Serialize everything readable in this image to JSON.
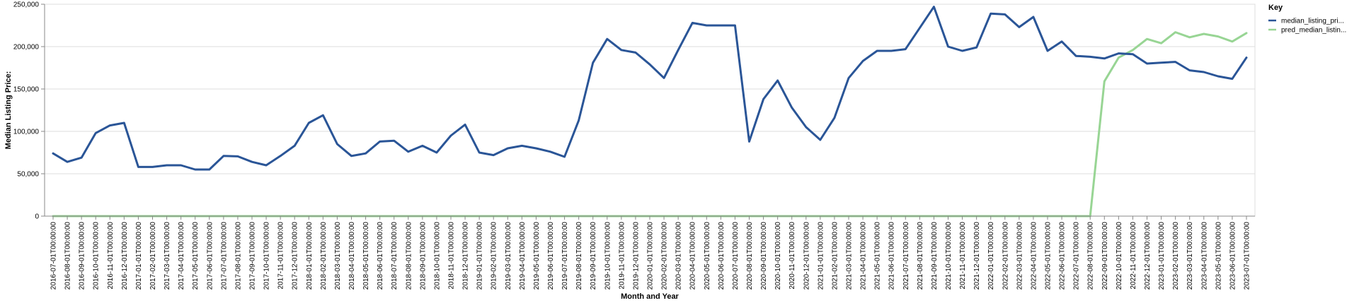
{
  "chart_data": {
    "type": "line",
    "xlabel": "Month and Year",
    "ylabel": "Median Listing Price:",
    "ylim": [
      0,
      250000
    ],
    "yticks": [
      "0",
      "50,000",
      "100,000",
      "150,000",
      "200,000",
      "250,000"
    ],
    "ytick_values": [
      0,
      50000,
      100000,
      150000,
      200000,
      250000
    ],
    "grid": "horizontal",
    "legend": {
      "title": "Key",
      "placement": "top-right"
    },
    "x": [
      "2016-07-01T00:00:00",
      "2016-08-01T00:00:00",
      "2016-09-01T00:00:00",
      "2016-10-01T00:00:00",
      "2016-11-01T00:00:00",
      "2016-12-01T00:00:00",
      "2017-01-01T00:00:00",
      "2017-02-01T00:00:00",
      "2017-03-01T00:00:00",
      "2017-04-01T00:00:00",
      "2017-05-01T00:00:00",
      "2017-06-01T00:00:00",
      "2017-07-01T00:00:00",
      "2017-08-01T00:00:00",
      "2017-09-01T00:00:00",
      "2017-10-01T00:00:00",
      "2017-11-01T00:00:00",
      "2017-12-01T00:00:00",
      "2018-01-01T00:00:00",
      "2018-02-01T00:00:00",
      "2018-03-01T00:00:00",
      "2018-04-01T00:00:00",
      "2018-05-01T00:00:00",
      "2018-06-01T00:00:00",
      "2018-07-01T00:00:00",
      "2018-08-01T00:00:00",
      "2018-09-01T00:00:00",
      "2018-10-01T00:00:00",
      "2018-11-01T00:00:00",
      "2018-12-01T00:00:00",
      "2019-01-01T00:00:00",
      "2019-02-01T00:00:00",
      "2019-03-01T00:00:00",
      "2019-04-01T00:00:00",
      "2019-05-01T00:00:00",
      "2019-06-01T00:00:00",
      "2019-07-01T00:00:00",
      "2019-08-01T00:00:00",
      "2019-09-01T00:00:00",
      "2019-10-01T00:00:00",
      "2019-11-01T00:00:00",
      "2019-12-01T00:00:00",
      "2020-01-01T00:00:00",
      "2020-02-01T00:00:00",
      "2020-03-01T00:00:00",
      "2020-04-01T00:00:00",
      "2020-05-01T00:00:00",
      "2020-06-01T00:00:00",
      "2020-07-01T00:00:00",
      "2020-08-01T00:00:00",
      "2020-09-01T00:00:00",
      "2020-10-01T00:00:00",
      "2020-11-01T00:00:00",
      "2020-12-01T00:00:00",
      "2021-01-01T00:00:00",
      "2021-02-01T00:00:00",
      "2021-03-01T00:00:00",
      "2021-04-01T00:00:00",
      "2021-05-01T00:00:00",
      "2021-06-01T00:00:00",
      "2021-07-01T00:00:00",
      "2021-08-01T00:00:00",
      "2021-09-01T00:00:00",
      "2021-10-01T00:00:00",
      "2021-11-01T00:00:00",
      "2021-12-01T00:00:00",
      "2022-01-01T00:00:00",
      "2022-02-01T00:00:00",
      "2022-03-01T00:00:00",
      "2022-04-01T00:00:00",
      "2022-05-01T00:00:00",
      "2022-06-01T00:00:00",
      "2022-07-01T00:00:00",
      "2022-08-01T00:00:00",
      "2022-09-01T00:00:00",
      "2022-10-01T00:00:00",
      "2022-11-01T00:00:00",
      "2022-12-01T00:00:00",
      "2023-01-01T00:00:00",
      "2023-02-01T00:00:00",
      "2023-03-01T00:00:00",
      "2023-04-01T00:00:00",
      "2023-05-01T00:00:00",
      "2023-06-01T00:00:00",
      "2023-07-01T00:00:00"
    ],
    "series": [
      {
        "name": "median_listing_pri...",
        "color": "#2a5597",
        "values": [
          74000,
          64000,
          69000,
          98000,
          107000,
          110000,
          58000,
          58000,
          60000,
          60000,
          55000,
          55000,
          71000,
          70500,
          64000,
          60000,
          71000,
          83000,
          110000,
          119000,
          85000,
          71000,
          74000,
          88000,
          89000,
          76000,
          83000,
          75000,
          95000,
          108000,
          75000,
          72000,
          80000,
          83000,
          80000,
          76000,
          70000,
          113000,
          181000,
          209000,
          196000,
          193000,
          179000,
          163000,
          196000,
          228000,
          225000,
          225000,
          225000,
          88000,
          138000,
          160000,
          128000,
          105000,
          90000,
          116000,
          163000,
          183000,
          195000,
          195000,
          197000,
          222000,
          247000,
          200000,
          195000,
          199000,
          239000,
          238000,
          223000,
          235000,
          195000,
          206000,
          189000,
          188000,
          186000,
          192000,
          191000,
          180000,
          181000,
          182000,
          172000,
          170000,
          165000,
          162000,
          187000
        ]
      },
      {
        "name": "pred_median_listin...",
        "color": "#98d594",
        "values": [
          0,
          0,
          0,
          0,
          0,
          0,
          0,
          0,
          0,
          0,
          0,
          0,
          0,
          0,
          0,
          0,
          0,
          0,
          0,
          0,
          0,
          0,
          0,
          0,
          0,
          0,
          0,
          0,
          0,
          0,
          0,
          0,
          0,
          0,
          0,
          0,
          0,
          0,
          0,
          0,
          0,
          0,
          0,
          0,
          0,
          0,
          0,
          0,
          0,
          0,
          0,
          0,
          0,
          0,
          0,
          0,
          0,
          0,
          0,
          0,
          0,
          0,
          0,
          0,
          0,
          0,
          0,
          0,
          0,
          0,
          0,
          0,
          0,
          0,
          159000,
          187000,
          196000,
          209000,
          204000,
          217000,
          211000,
          215000,
          212000,
          206000,
          216000
        ]
      }
    ]
  }
}
